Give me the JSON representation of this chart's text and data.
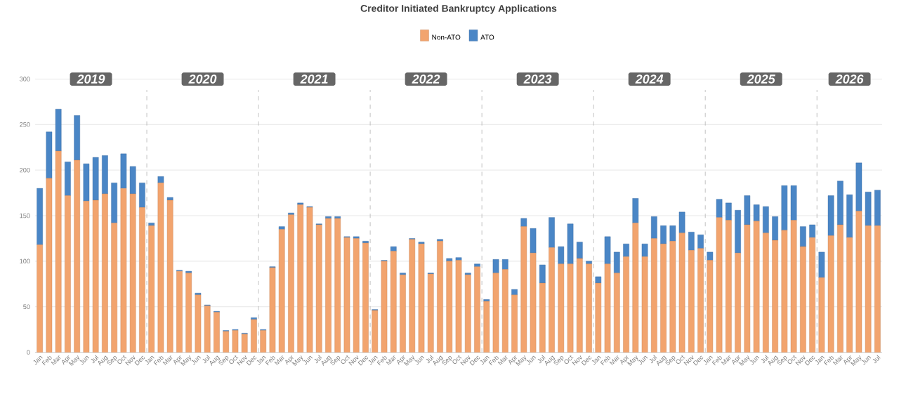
{
  "chart_data": {
    "type": "bar",
    "title": "Creditor Initiated Bankruptcy Applications",
    "stacked": true,
    "grid": "y",
    "legend": "top",
    "ylim": [
      0,
      300
    ],
    "yticks": [
      0,
      50,
      100,
      150,
      200,
      250,
      300
    ],
    "annotations": [
      "2019",
      "2020",
      "2021",
      "2022",
      "2023",
      "2024",
      "2025",
      "2026"
    ],
    "categories": [
      "Jan",
      "Feb",
      "Mar",
      "Apr",
      "May",
      "Jun",
      "Jul",
      "Aug",
      "Sep",
      "Oct",
      "Nov",
      "Dec",
      "Jan",
      "Feb",
      "Mar",
      "Apr",
      "May",
      "Jun",
      "Jul",
      "Aug",
      "Sep",
      "Oct",
      "Nov",
      "Dec",
      "Jan",
      "Feb",
      "Mar",
      "Apr",
      "May",
      "Jun",
      "Jul",
      "Aug",
      "Sep",
      "Oct",
      "Nov",
      "Dec",
      "Jan",
      "Feb",
      "Mar",
      "Apr",
      "May",
      "Jun",
      "Jul",
      "Aug",
      "Sep",
      "Oct",
      "Nov",
      "Dec",
      "Jan",
      "Feb",
      "Mar",
      "Apr",
      "May",
      "Jun",
      "Jul",
      "Aug",
      "Sep",
      "Oct",
      "Nov",
      "Dec",
      "Jan",
      "Feb",
      "Mar",
      "Apr",
      "May",
      "Jun",
      "Jul",
      "Aug",
      "Sep",
      "Oct",
      "Nov",
      "Dec",
      "Jan",
      "Feb",
      "Mar",
      "Apr",
      "May",
      "Jun",
      "Jul",
      "Aug",
      "Sep",
      "Oct",
      "Nov",
      "Dec",
      "Jan",
      "Feb",
      "Mar",
      "Apr",
      "May",
      "Jun",
      "Jul"
    ],
    "series": [
      {
        "name": "Non-ATO",
        "color": "#f2a46e",
        "values": [
          118,
          191,
          221,
          172,
          211,
          166,
          167,
          174,
          142,
          180,
          174,
          159,
          139,
          186,
          167,
          89,
          87,
          63,
          51,
          44,
          23,
          24,
          20,
          36,
          24,
          93,
          135,
          151,
          162,
          159,
          140,
          147,
          147,
          126,
          125,
          120,
          46,
          100,
          111,
          85,
          124,
          119,
          86,
          122,
          100,
          101,
          85,
          94,
          56,
          87,
          91,
          63,
          138,
          109,
          76,
          115,
          97,
          97,
          103,
          97,
          76,
          97,
          87,
          105,
          142,
          105,
          125,
          119,
          122,
          131,
          112,
          114,
          101,
          148,
          145,
          109,
          140,
          144,
          131,
          123,
          134,
          145,
          116,
          126,
          82,
          128,
          140,
          126,
          155,
          139,
          139
        ]
      },
      {
        "name": "ATO",
        "color": "#4a86c6",
        "values": [
          62,
          51,
          46,
          37,
          49,
          41,
          47,
          42,
          44,
          38,
          30,
          27,
          3,
          7,
          3,
          1,
          2,
          2,
          1,
          1,
          1,
          1,
          1,
          2,
          1,
          1,
          3,
          2,
          2,
          1,
          1,
          2,
          2,
          1,
          2,
          2,
          1,
          1,
          5,
          2,
          1,
          2,
          1,
          2,
          3,
          3,
          2,
          3,
          2,
          15,
          11,
          6,
          9,
          27,
          20,
          33,
          19,
          44,
          18,
          3,
          7,
          30,
          23,
          14,
          27,
          14,
          24,
          20,
          17,
          23,
          20,
          15,
          9,
          20,
          19,
          47,
          32,
          18,
          29,
          26,
          49,
          38,
          22,
          14,
          28,
          44,
          48,
          47,
          53,
          37,
          39
        ]
      }
    ]
  }
}
